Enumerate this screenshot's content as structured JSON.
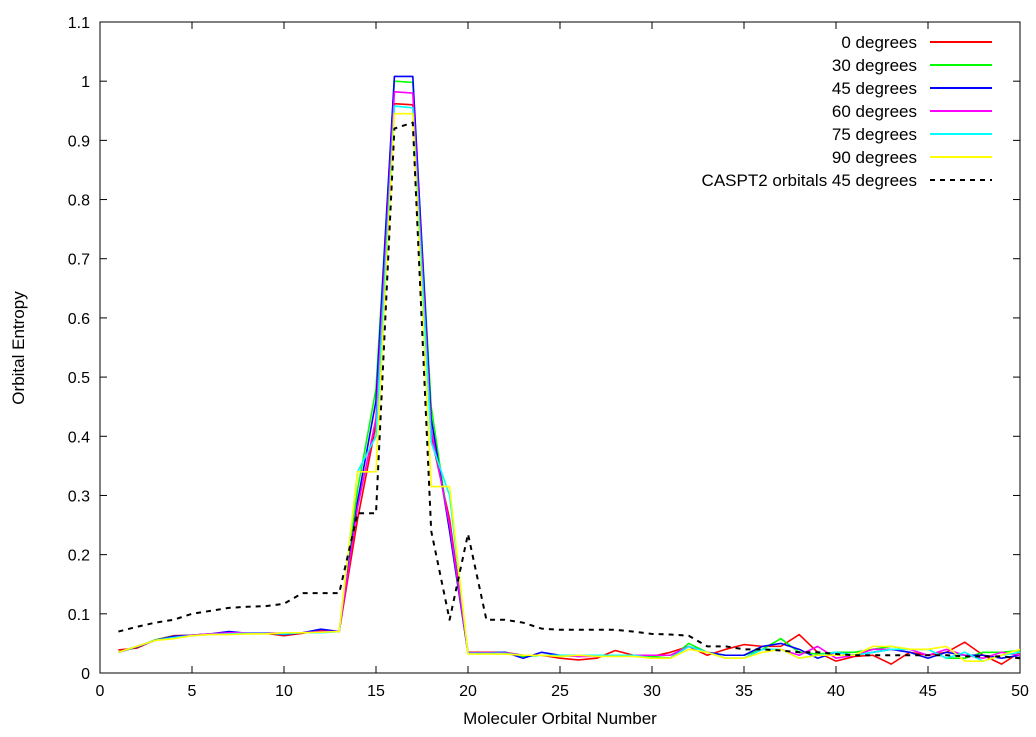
{
  "chart_data": {
    "type": "line",
    "title": "",
    "xlabel": "Moleculer Orbital Number",
    "ylabel": "Orbital Entropy",
    "xlim": [
      0,
      50
    ],
    "ylim": [
      0,
      1.1
    ],
    "xticks": [
      0,
      5,
      10,
      15,
      20,
      25,
      30,
      35,
      40,
      45,
      50
    ],
    "yticks": [
      0,
      0.1,
      0.2,
      0.3,
      0.4,
      0.5,
      0.6,
      0.7,
      0.8,
      0.9,
      1,
      1.1
    ],
    "grid": false,
    "legend_position": "top-right",
    "x": [
      1,
      2,
      3,
      4,
      5,
      6,
      7,
      8,
      9,
      10,
      11,
      12,
      13,
      14,
      15,
      16,
      17,
      18,
      19,
      20,
      21,
      22,
      23,
      24,
      25,
      26,
      27,
      28,
      29,
      30,
      31,
      32,
      33,
      34,
      35,
      36,
      37,
      38,
      39,
      40,
      41,
      42,
      43,
      44,
      45,
      46,
      47,
      48,
      49,
      50
    ],
    "series": [
      {
        "name": "0 degrees",
        "color": "#ff0000",
        "dash": "solid",
        "values": [
          0.039,
          0.042,
          0.056,
          0.063,
          0.064,
          0.066,
          0.066,
          0.067,
          0.067,
          0.063,
          0.067,
          0.072,
          0.07,
          0.26,
          0.42,
          0.962,
          0.96,
          0.4,
          0.26,
          0.035,
          0.035,
          0.035,
          0.03,
          0.03,
          0.025,
          0.022,
          0.025,
          0.038,
          0.03,
          0.028,
          0.035,
          0.045,
          0.03,
          0.04,
          0.048,
          0.045,
          0.045,
          0.065,
          0.035,
          0.02,
          0.028,
          0.03,
          0.015,
          0.035,
          0.03,
          0.035,
          0.052,
          0.03,
          0.015,
          0.035
        ]
      },
      {
        "name": "30 degrees",
        "color": "#00ff00",
        "dash": "solid",
        "values": [
          0.035,
          0.044,
          0.056,
          0.062,
          0.064,
          0.066,
          0.067,
          0.067,
          0.068,
          0.066,
          0.068,
          0.069,
          0.07,
          0.31,
          0.48,
          1.0,
          0.998,
          0.45,
          0.24,
          0.034,
          0.034,
          0.035,
          0.028,
          0.03,
          0.028,
          0.03,
          0.03,
          0.03,
          0.03,
          0.028,
          0.025,
          0.05,
          0.035,
          0.03,
          0.03,
          0.04,
          0.058,
          0.035,
          0.032,
          0.035,
          0.035,
          0.04,
          0.045,
          0.04,
          0.04,
          0.025,
          0.025,
          0.035,
          0.035,
          0.038
        ]
      },
      {
        "name": "45 degrees",
        "color": "#0000ff",
        "dash": "solid",
        "values": [
          0.035,
          0.044,
          0.055,
          0.062,
          0.064,
          0.066,
          0.07,
          0.067,
          0.068,
          0.065,
          0.068,
          0.074,
          0.07,
          0.29,
          0.46,
          1.008,
          1.008,
          0.43,
          0.24,
          0.034,
          0.034,
          0.035,
          0.025,
          0.035,
          0.03,
          0.028,
          0.03,
          0.03,
          0.03,
          0.025,
          0.025,
          0.045,
          0.035,
          0.03,
          0.03,
          0.045,
          0.05,
          0.04,
          0.025,
          0.035,
          0.03,
          0.035,
          0.04,
          0.035,
          0.025,
          0.035,
          0.03,
          0.03,
          0.025,
          0.03
        ]
      },
      {
        "name": "60 degrees",
        "color": "#ff00ff",
        "dash": "solid",
        "values": [
          0.035,
          0.045,
          0.055,
          0.06,
          0.064,
          0.066,
          0.068,
          0.068,
          0.068,
          0.067,
          0.068,
          0.07,
          0.07,
          0.28,
          0.43,
          0.982,
          0.98,
          0.41,
          0.25,
          0.034,
          0.034,
          0.034,
          0.03,
          0.03,
          0.03,
          0.028,
          0.028,
          0.03,
          0.03,
          0.03,
          0.03,
          0.045,
          0.035,
          0.025,
          0.025,
          0.04,
          0.04,
          0.03,
          0.045,
          0.025,
          0.03,
          0.04,
          0.04,
          0.04,
          0.03,
          0.04,
          0.03,
          0.025,
          0.035,
          0.03
        ]
      },
      {
        "name": "75 degrees",
        "color": "#00ffff",
        "dash": "solid",
        "values": [
          0.035,
          0.045,
          0.055,
          0.06,
          0.063,
          0.065,
          0.066,
          0.067,
          0.067,
          0.066,
          0.068,
          0.068,
          0.07,
          0.34,
          0.4,
          0.958,
          0.955,
          0.39,
          0.3,
          0.033,
          0.033,
          0.033,
          0.03,
          0.03,
          0.03,
          0.03,
          0.03,
          0.03,
          0.03,
          0.025,
          0.025,
          0.045,
          0.035,
          0.025,
          0.025,
          0.04,
          0.04,
          0.025,
          0.03,
          0.035,
          0.03,
          0.035,
          0.04,
          0.04,
          0.04,
          0.025,
          0.035,
          0.02,
          0.03,
          0.035
        ]
      },
      {
        "name": "90 degrees",
        "color": "#ffff00",
        "dash": "solid",
        "values": [
          0.035,
          0.045,
          0.055,
          0.058,
          0.063,
          0.065,
          0.065,
          0.066,
          0.066,
          0.068,
          0.068,
          0.069,
          0.07,
          0.34,
          0.34,
          0.945,
          0.945,
          0.315,
          0.315,
          0.032,
          0.032,
          0.032,
          0.03,
          0.03,
          0.028,
          0.03,
          0.028,
          0.028,
          0.028,
          0.025,
          0.025,
          0.04,
          0.035,
          0.025,
          0.025,
          0.035,
          0.04,
          0.025,
          0.03,
          0.03,
          0.03,
          0.045,
          0.045,
          0.04,
          0.04,
          0.045,
          0.02,
          0.02,
          0.03,
          0.04
        ]
      },
      {
        "name": "CASPT2 orbitals 45 degrees",
        "color": "#000000",
        "dash": "dashed",
        "values": [
          0.07,
          0.078,
          0.085,
          0.09,
          0.1,
          0.105,
          0.11,
          0.112,
          0.113,
          0.117,
          0.135,
          0.135,
          0.135,
          0.27,
          0.27,
          0.92,
          0.93,
          0.24,
          0.09,
          0.235,
          0.09,
          0.09,
          0.085,
          0.075,
          0.073,
          0.073,
          0.073,
          0.073,
          0.07,
          0.066,
          0.065,
          0.063,
          0.045,
          0.045,
          0.04,
          0.04,
          0.038,
          0.035,
          0.035,
          0.032,
          0.03,
          0.03,
          0.03,
          0.03,
          0.03,
          0.03,
          0.028,
          0.028,
          0.028,
          0.025
        ]
      }
    ]
  }
}
